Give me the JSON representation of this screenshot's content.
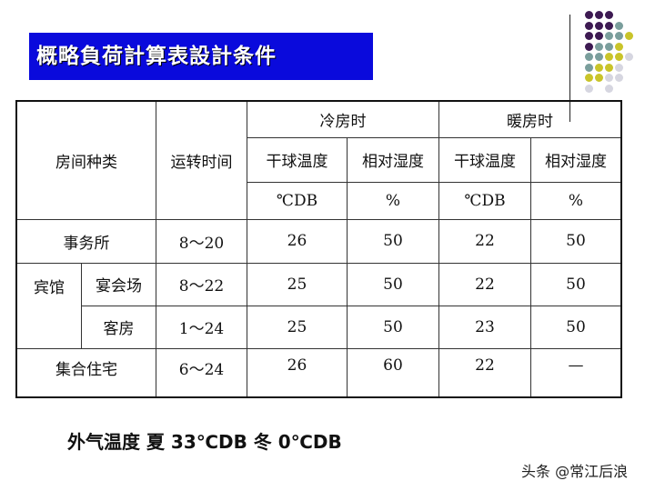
{
  "title": "概略負荷計算表設計条件",
  "table": {
    "headers": {
      "room_type": "房间种类",
      "operating_hours": "运转时间",
      "cooling": "冷房时",
      "heating": "暖房时",
      "dry_bulb": "干球温度",
      "rh": "相对湿度",
      "unit_temp": "℃DB",
      "unit_rh": "%"
    },
    "rows": [
      {
        "group": "事务所",
        "hours": "8～20",
        "c_t": "26",
        "c_rh": "50",
        "h_t": "22",
        "h_rh": "50"
      },
      {
        "group": "宾馆",
        "sub": "宴会场",
        "hours": "8～22",
        "c_t": "25",
        "c_rh": "50",
        "h_t": "22",
        "h_rh": "50"
      },
      {
        "sub": "客房",
        "hours": "1～24",
        "c_t": "25",
        "c_rh": "50",
        "h_t": "23",
        "h_rh": "50"
      },
      {
        "group": "集合住宅",
        "hours": "6～24",
        "c_t": "26",
        "c_rh": "60",
        "h_t": "22",
        "h_rh": "—"
      }
    ]
  },
  "note": "外气温度 夏 33℃DB 冬 0℃DB",
  "watermark": "头条 @常江后浪",
  "dot_colors": [
    "#3d1a52",
    "#7a9e9c",
    "#c9c42a",
    "#d6d6e0"
  ]
}
